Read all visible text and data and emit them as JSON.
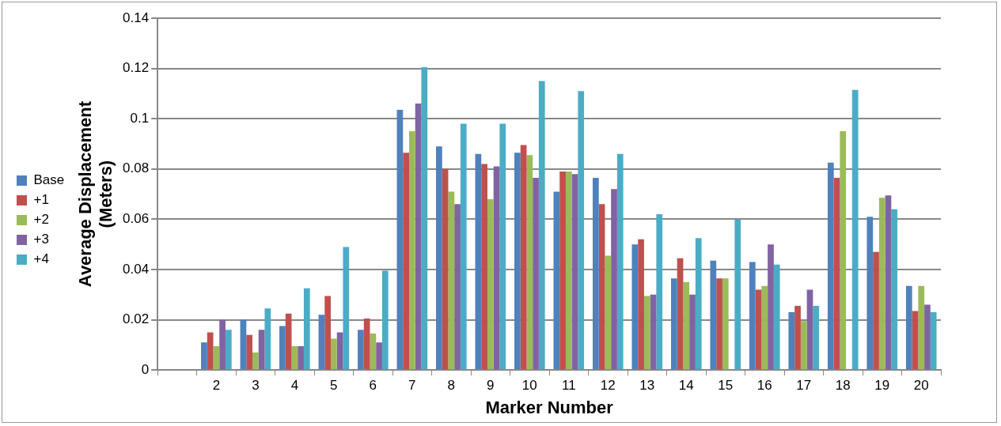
{
  "chart_data": {
    "type": "bar",
    "xlabel": "Marker Number",
    "ylabel": "Average Displacement\n(Meters)",
    "categories": [
      null,
      "2",
      "3",
      "4",
      "5",
      "6",
      "7",
      "8",
      "9",
      "10",
      "11",
      "12",
      "13",
      "14",
      "15",
      "16",
      "17",
      "18",
      "19",
      "20"
    ],
    "series": [
      {
        "name": "Base",
        "color": "#4f81bd",
        "values": [
          null,
          0.011,
          0.02,
          0.0175,
          0.022,
          0.016,
          0.1035,
          0.089,
          0.086,
          0.0865,
          0.071,
          0.0765,
          0.05,
          0.0365,
          0.0435,
          0.043,
          0.023,
          0.0825,
          0.061,
          0.0335
        ]
      },
      {
        "name": "+1",
        "color": "#c0504d",
        "values": [
          null,
          0.015,
          0.014,
          0.0225,
          0.0295,
          0.0205,
          0.0865,
          0.08,
          0.082,
          0.0895,
          0.079,
          0.066,
          0.052,
          0.0445,
          0.0365,
          0.032,
          0.0255,
          0.0765,
          0.047,
          0.0235
        ]
      },
      {
        "name": "+2",
        "color": "#9bbb59",
        "values": [
          null,
          0.0095,
          0.007,
          0.0095,
          0.0125,
          0.0145,
          0.095,
          0.071,
          0.068,
          0.0855,
          0.079,
          0.0455,
          0.0295,
          0.035,
          0.0365,
          0.0335,
          0.0195,
          0.095,
          0.0685,
          0.0335
        ]
      },
      {
        "name": "+3",
        "color": "#8064a2",
        "values": [
          null,
          0.02,
          0.016,
          0.0095,
          0.015,
          0.011,
          0.106,
          0.066,
          0.081,
          0.0765,
          0.078,
          0.072,
          0.03,
          0.03,
          null,
          0.05,
          0.032,
          null,
          0.0695,
          0.026
        ]
      },
      {
        "name": "+4",
        "color": "#4bacc6",
        "values": [
          null,
          0.016,
          0.0245,
          0.0325,
          0.049,
          0.0395,
          0.1205,
          0.098,
          0.098,
          0.115,
          0.111,
          0.086,
          0.062,
          0.0525,
          0.06,
          0.042,
          0.0255,
          0.1115,
          0.064,
          0.023
        ]
      }
    ],
    "ylim": [
      0,
      0.14
    ],
    "yticks": [
      0,
      0.02,
      0.04,
      0.06,
      0.08,
      0.1,
      0.12,
      0.14
    ],
    "grid": "y",
    "legend": "left"
  }
}
